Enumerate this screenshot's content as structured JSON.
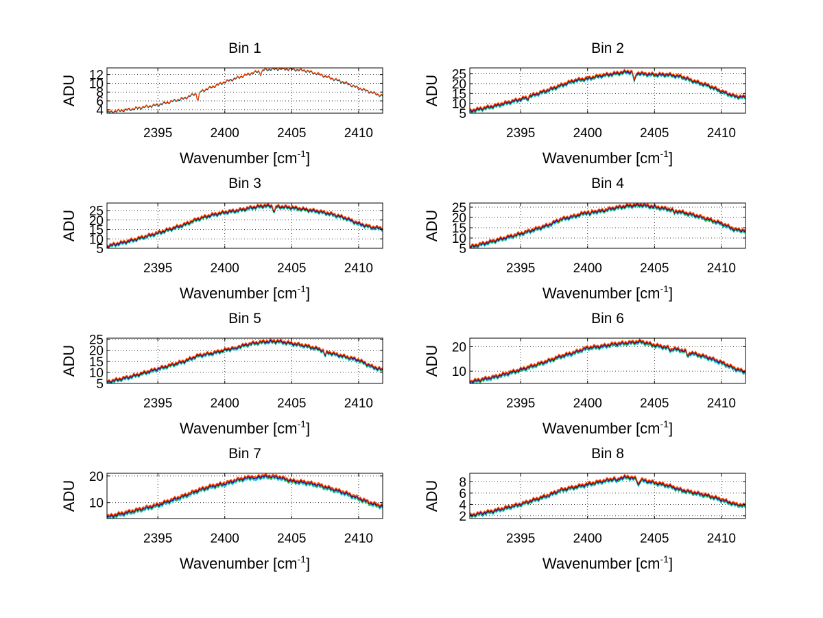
{
  "figure": {
    "background": "#ffffff",
    "series_colors": [
      "#00cccc",
      "#2a9a2a",
      "#0000aa",
      "#cc0000",
      "#ff5500"
    ],
    "grid": "dotted"
  },
  "chart_data": [
    {
      "type": "line",
      "title": "Bin 1",
      "xlabel": "Wavenumber [cm",
      "xlabel_sup": "-1",
      "xlabel_close": "]",
      "ylabel": "ADU",
      "xlim": [
        2391.2,
        2411.8
      ],
      "ylim": [
        3.2,
        13.5
      ],
      "xticks": [
        2395,
        2400,
        2405,
        2410
      ],
      "yticks": [
        4,
        6,
        8,
        10,
        12
      ],
      "x": [
        2391.2,
        2393,
        2395,
        2397,
        2398,
        2399,
        2400,
        2401,
        2402,
        2403,
        2404,
        2405,
        2406,
        2407,
        2408,
        2409,
        2410,
        2411,
        2411.8
      ],
      "y": [
        3.3,
        4.0,
        5.0,
        6.5,
        7.8,
        9.0,
        10.2,
        11.2,
        12.2,
        13.0,
        13.2,
        13.1,
        12.8,
        12.0,
        11.0,
        10.0,
        8.8,
        7.8,
        7.0
      ],
      "dips": [
        {
          "x": 2398.0,
          "depth": 1.8
        },
        {
          "x": 2402.7,
          "depth": 0.8
        }
      ],
      "series_offsets": [
        0,
        0.05,
        0.1,
        0.15,
        0.2
      ]
    },
    {
      "type": "line",
      "title": "Bin 2",
      "xlabel": "Wavenumber [cm",
      "xlabel_sup": "-1",
      "xlabel_close": "]",
      "ylabel": "ADU",
      "xlim": [
        2391.2,
        2411.8
      ],
      "ylim": [
        5,
        28
      ],
      "xticks": [
        2395,
        2400,
        2405,
        2410
      ],
      "yticks": [
        5,
        10,
        15,
        20,
        25
      ],
      "x": [
        2391.2,
        2393,
        2395,
        2397,
        2398,
        2399,
        2400,
        2401,
        2402,
        2403,
        2404,
        2405,
        2406,
        2407,
        2408,
        2409,
        2410,
        2411,
        2411.8
      ],
      "y": [
        6.0,
        8.5,
        12.0,
        16.5,
        19.0,
        21.5,
        22.5,
        24.0,
        25.0,
        26.0,
        25.0,
        24.5,
        24.5,
        23.5,
        21.0,
        19.0,
        16.0,
        13.5,
        13.0
      ],
      "dips": [
        {
          "x": 2403.5,
          "depth": 4.5
        },
        {
          "x": 2395.5,
          "depth": 1.0
        }
      ],
      "series_offsets": [
        -0.8,
        -0.4,
        0,
        0.4,
        0.8
      ]
    },
    {
      "type": "line",
      "title": "Bin 3",
      "xlabel": "Wavenumber [cm",
      "xlabel_sup": "-1",
      "xlabel_close": "]",
      "ylabel": "ADU",
      "xlim": [
        2391.2,
        2411.8
      ],
      "ylim": [
        5,
        29
      ],
      "xticks": [
        2395,
        2400,
        2405,
        2410
      ],
      "yticks": [
        5,
        10,
        15,
        20,
        25
      ],
      "x": [
        2391.2,
        2393,
        2395,
        2397,
        2398,
        2399,
        2400,
        2401,
        2402,
        2403,
        2404,
        2405,
        2406,
        2407,
        2408,
        2409,
        2410,
        2411,
        2411.8
      ],
      "y": [
        6.0,
        9.0,
        13.0,
        17.5,
        20.5,
        22.5,
        24.0,
        25.0,
        26.5,
        27.5,
        27.0,
        26.5,
        25.5,
        24.5,
        23.0,
        21.0,
        18.0,
        16.0,
        15.5
      ],
      "dips": [
        {
          "x": 2403.7,
          "depth": 3.0
        }
      ],
      "series_offsets": [
        -0.8,
        -0.4,
        0,
        0.4,
        0.8
      ]
    },
    {
      "type": "line",
      "title": "Bin 4",
      "xlabel": "Wavenumber [cm",
      "xlabel_sup": "-1",
      "xlabel_close": "]",
      "ylabel": "ADU",
      "xlim": [
        2391.2,
        2411.8
      ],
      "ylim": [
        5,
        27
      ],
      "xticks": [
        2395,
        2400,
        2405,
        2410
      ],
      "yticks": [
        5,
        10,
        15,
        20,
        25
      ],
      "x": [
        2391.2,
        2393,
        2395,
        2397,
        2398,
        2399,
        2400,
        2401,
        2402,
        2403,
        2404,
        2405,
        2406,
        2407,
        2408,
        2409,
        2410,
        2411,
        2411.8
      ],
      "y": [
        5.5,
        8.5,
        12.0,
        16.0,
        19.0,
        20.5,
        22.5,
        23.0,
        24.5,
        25.5,
        26.0,
        25.0,
        24.0,
        22.5,
        21.0,
        19.0,
        17.0,
        14.0,
        13.5
      ],
      "dips": [
        {
          "x": 2400.2,
          "depth": 1.2
        },
        {
          "x": 2406.5,
          "depth": 1.0
        }
      ],
      "series_offsets": [
        -0.8,
        -0.4,
        0,
        0.4,
        0.8
      ]
    },
    {
      "type": "line",
      "title": "Bin 5",
      "xlabel": "Wavenumber [cm",
      "xlabel_sup": "-1",
      "xlabel_close": "]",
      "ylabel": "ADU",
      "xlim": [
        2391.2,
        2411.8
      ],
      "ylim": [
        5,
        25.5
      ],
      "xticks": [
        2395,
        2400,
        2405,
        2410
      ],
      "yticks": [
        5,
        10,
        15,
        20,
        25
      ],
      "x": [
        2391.2,
        2393,
        2395,
        2397,
        2398,
        2399,
        2400,
        2401,
        2402,
        2403,
        2404,
        2405,
        2406,
        2407,
        2408,
        2409,
        2410,
        2411,
        2411.8
      ],
      "y": [
        5.5,
        8.0,
        11.5,
        15.0,
        17.5,
        18.5,
        20.0,
        21.5,
        23.0,
        23.8,
        24.0,
        23.0,
        22.0,
        20.5,
        18.5,
        17.0,
        15.5,
        12.5,
        11.0
      ],
      "dips": [
        {
          "x": 2407.5,
          "depth": 2.0
        },
        {
          "x": 2400.8,
          "depth": 1.0
        }
      ],
      "series_offsets": [
        -0.7,
        -0.35,
        0,
        0.35,
        0.7
      ]
    },
    {
      "type": "line",
      "title": "Bin 6",
      "xlabel": "Wavenumber [cm",
      "xlabel_sup": "-1",
      "xlabel_close": "]",
      "ylabel": "ADU",
      "xlim": [
        2391.2,
        2411.8
      ],
      "ylim": [
        5,
        23.5
      ],
      "xticks": [
        2395,
        2400,
        2405,
        2410
      ],
      "yticks": [
        10,
        20
      ],
      "x": [
        2391.2,
        2393,
        2395,
        2397,
        2398,
        2399,
        2400,
        2401,
        2402,
        2403,
        2404,
        2405,
        2406,
        2407,
        2408,
        2409,
        2410,
        2411,
        2411.8
      ],
      "y": [
        5.5,
        7.5,
        10.5,
        14.0,
        16.0,
        17.5,
        19.5,
        20.0,
        21.0,
        21.5,
        22.0,
        20.5,
        19.5,
        18.5,
        17.0,
        15.5,
        13.5,
        11.0,
        9.5
      ],
      "dips": [
        {
          "x": 2407.5,
          "depth": 1.8
        },
        {
          "x": 2406.2,
          "depth": 1.0
        }
      ],
      "series_offsets": [
        -0.7,
        -0.35,
        0,
        0.35,
        0.7
      ]
    },
    {
      "type": "line",
      "title": "Bin 7",
      "xlabel": "Wavenumber [cm",
      "xlabel_sup": "-1",
      "xlabel_close": "]",
      "ylabel": "ADU",
      "xlim": [
        2391.2,
        2411.8
      ],
      "ylim": [
        4,
        21
      ],
      "xticks": [
        2395,
        2400,
        2405,
        2410
      ],
      "yticks": [
        10,
        20
      ],
      "x": [
        2391.2,
        2393,
        2395,
        2397,
        2398,
        2399,
        2400,
        2401,
        2402,
        2403,
        2404,
        2405,
        2406,
        2407,
        2408,
        2409,
        2410,
        2411,
        2411.8
      ],
      "y": [
        4.5,
        6.5,
        9.0,
        12.5,
        14.5,
        16.0,
        17.0,
        18.5,
        19.5,
        19.8,
        19.5,
        18.0,
        17.5,
        16.5,
        15.0,
        13.5,
        11.5,
        9.5,
        8.5
      ],
      "dips": [
        {
          "x": 2402.3,
          "depth": 1.2
        }
      ],
      "series_offsets": [
        -0.7,
        -0.35,
        0,
        0.35,
        0.7
      ]
    },
    {
      "type": "line",
      "title": "Bin 8",
      "xlabel": "Wavenumber [cm",
      "xlabel_sup": "-1",
      "xlabel_close": "]",
      "ylabel": "ADU",
      "xlim": [
        2391.2,
        2411.8
      ],
      "ylim": [
        1.5,
        9.5
      ],
      "xticks": [
        2395,
        2400,
        2405,
        2410
      ],
      "yticks": [
        2,
        4,
        6,
        8
      ],
      "x": [
        2391.2,
        2393,
        2395,
        2397,
        2398,
        2399,
        2400,
        2401,
        2402,
        2403,
        2404,
        2405,
        2406,
        2407,
        2408,
        2409,
        2410,
        2411,
        2411.8
      ],
      "y": [
        2.0,
        2.8,
        4.0,
        5.5,
        6.5,
        7.0,
        7.5,
        8.0,
        8.5,
        8.8,
        8.3,
        7.8,
        7.3,
        6.5,
        6.0,
        5.5,
        4.8,
        4.0,
        3.7
      ],
      "dips": [
        {
          "x": 2403.8,
          "depth": 1.0
        },
        {
          "x": 2402.2,
          "depth": 0.6
        }
      ],
      "series_offsets": [
        -0.3,
        -0.15,
        0,
        0.15,
        0.3
      ]
    }
  ]
}
